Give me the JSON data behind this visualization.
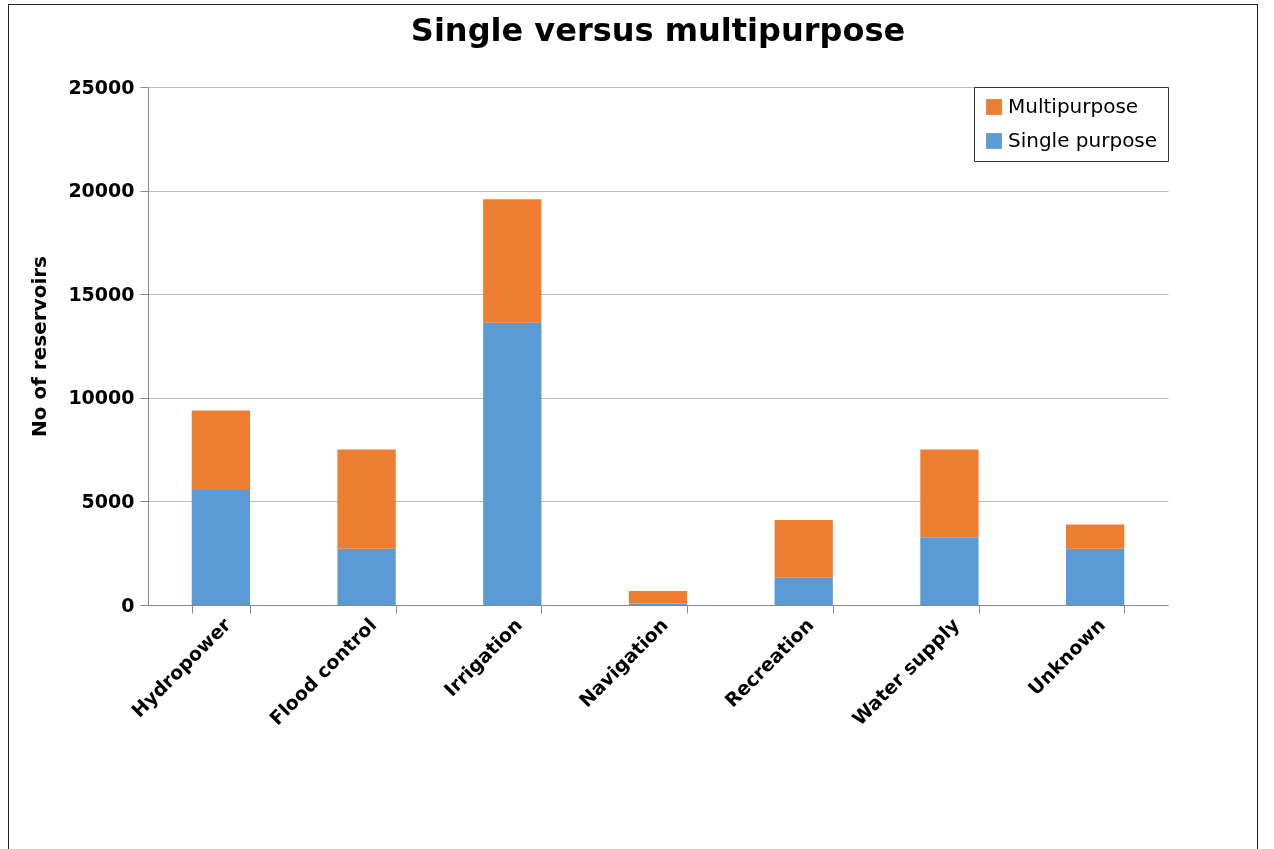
{
  "chart_data": {
    "type": "bar",
    "title": "Single versus multipurpose",
    "ylabel": "No of reservoirs",
    "categories": [
      "Hydropower",
      "Flood control",
      "Irrigation",
      "Navigation",
      "Recreation",
      "Water supply",
      "Unknown"
    ],
    "series": [
      {
        "name": "Single purpose",
        "color": "#5b9bd5",
        "values": [
          5550,
          2710,
          13620,
          70,
          1320,
          3270,
          2720
        ]
      },
      {
        "name": "Multipurpose",
        "color": "#ed7d31",
        "values": [
          3840,
          4790,
          5960,
          600,
          2780,
          4230,
          1170
        ]
      }
    ],
    "stacked": true,
    "ylim": [
      0,
      25000
    ],
    "yticks": [
      0,
      5000,
      10000,
      15000,
      20000,
      25000
    ],
    "grid": "y",
    "legend": "top right"
  }
}
